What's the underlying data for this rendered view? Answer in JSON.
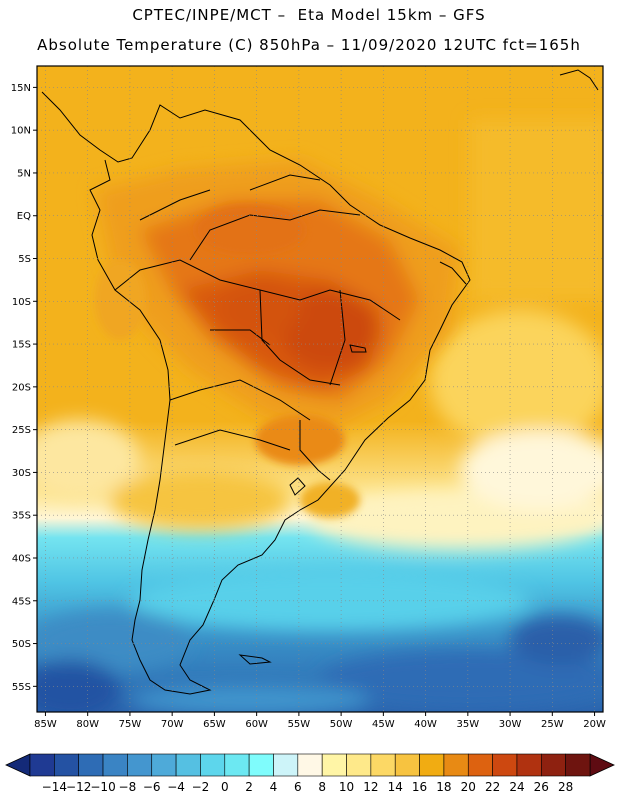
{
  "header": {
    "line1": "CPTEC/INPE/MCT –  Eta Model 15km – GFS",
    "line2": "Absolute Temperature (C) 850hPa – 11/09/2020 12UTC fct=165h"
  },
  "map": {
    "lat_ticks": [
      "15N",
      "10N",
      "5N",
      "EQ",
      "5S",
      "10S",
      "15S",
      "20S",
      "25S",
      "30S",
      "35S",
      "40S",
      "45S",
      "50S",
      "55S"
    ],
    "lon_ticks": [
      "85W",
      "80W",
      "75W",
      "70W",
      "65W",
      "60W",
      "55W",
      "50W",
      "45W",
      "40W",
      "35W",
      "30W",
      "25W",
      "20W"
    ],
    "lat_values": [
      15,
      10,
      5,
      0,
      -5,
      -10,
      -15,
      -20,
      -25,
      -30,
      -35,
      -40,
      -45,
      -50,
      -55
    ],
    "lon_values": [
      -85,
      -80,
      -75,
      -70,
      -65,
      -60,
      -55,
      -50,
      -45,
      -40,
      -35,
      -30,
      -25,
      -20
    ]
  },
  "colorbar": {
    "labels": [
      "-14",
      "-12",
      "-10",
      "-8",
      "-6",
      "-4",
      "-2",
      "0",
      "2",
      "4",
      "6",
      "8",
      "10",
      "12",
      "14",
      "16",
      "18",
      "20",
      "22",
      "24",
      "26",
      "28"
    ],
    "colors": [
      "#1f3a93",
      "#2452a3",
      "#2e6cb5",
      "#3a84c4",
      "#4496cf",
      "#4eaad9",
      "#55c0e2",
      "#5dd6ec",
      "#6ce8f2",
      "#7ffcfc",
      "#cdf4f9",
      "#fff8e6",
      "#fff5a6",
      "#fee98a",
      "#fcd865",
      "#f7c340",
      "#f1ac12",
      "#e88a14",
      "#dd6210",
      "#cd4810",
      "#b03210",
      "#8e2110",
      "#6e140f"
    ],
    "under_color": "#142a78",
    "over_color": "#5e0b12"
  }
}
